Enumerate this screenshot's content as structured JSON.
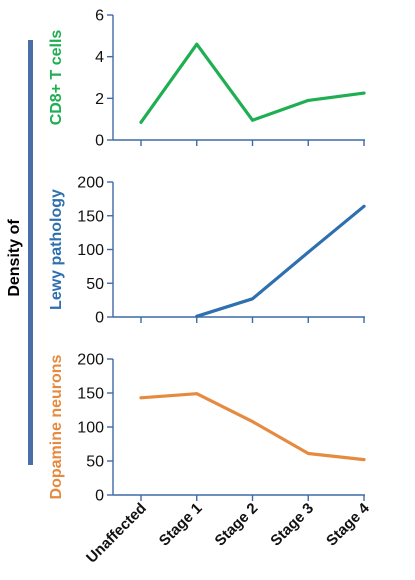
{
  "figure": {
    "supertitle": "Density of",
    "supertitle_bar_color": "#4a6fa8"
  },
  "chart_data": [
    {
      "type": "line",
      "categories": [
        "Unaffected",
        "Stage 1",
        "Stage 2",
        "Stage 3",
        "Stage 4"
      ],
      "ylabel": "CD8+ T cells",
      "ylim": [
        0,
        6
      ],
      "yticks": [
        0,
        2,
        4,
        6
      ],
      "series": [
        {
          "values": [
            0.85,
            4.6,
            0.95,
            1.9,
            2.25
          ],
          "color": "#1fae52"
        }
      ],
      "grid": false
    },
    {
      "type": "line",
      "categories": [
        "Unaffected",
        "Stage 1",
        "Stage 2",
        "Stage 3",
        "Stage 4"
      ],
      "ylabel": "Lewy pathology",
      "ylim": [
        0,
        200
      ],
      "yticks": [
        0,
        50,
        100,
        150,
        200
      ],
      "series": [
        {
          "values": [
            null,
            1,
            27,
            96,
            164
          ],
          "color": "#2e6fad"
        }
      ],
      "grid": false
    },
    {
      "type": "line",
      "categories": [
        "Unaffected",
        "Stage 1",
        "Stage 2",
        "Stage 3",
        "Stage 4"
      ],
      "ylabel": "Dopamine neurons",
      "ylim": [
        0,
        200
      ],
      "yticks": [
        0,
        50,
        100,
        150,
        200
      ],
      "series": [
        {
          "values": [
            143,
            149,
            108,
            61,
            52
          ],
          "color": "#e58a3e"
        }
      ],
      "grid": false
    }
  ]
}
